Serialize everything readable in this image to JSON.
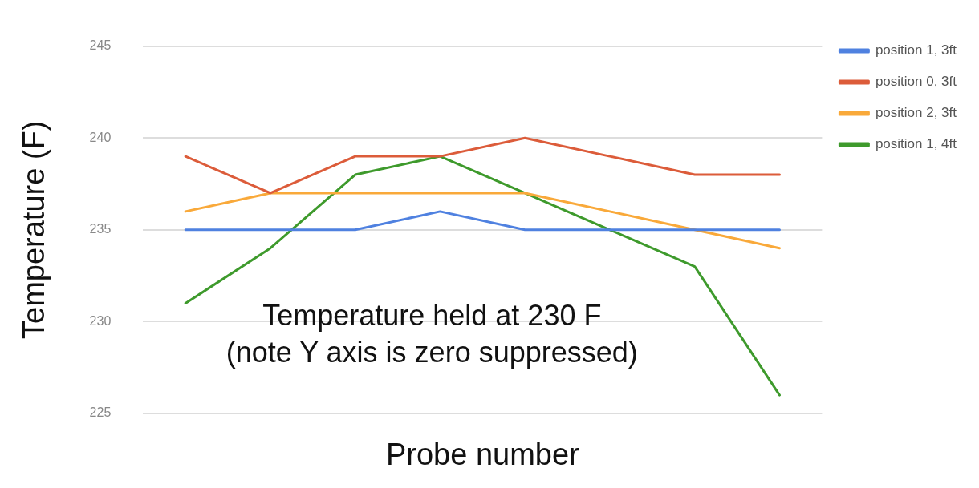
{
  "chart_data": {
    "type": "line",
    "xlabel": "Probe number",
    "ylabel": "Temperature (F)",
    "categories": [
      null,
      null,
      null,
      null,
      null,
      null,
      null,
      null
    ],
    "series": [
      {
        "name": "position 1, 3ft",
        "color": "#4f81e0",
        "values": [
          235,
          235,
          235,
          236,
          235,
          235,
          235,
          235
        ]
      },
      {
        "name": "position 0, 3ft",
        "color": "#dc5c3a",
        "values": [
          239,
          237,
          239,
          239,
          240,
          239,
          238,
          238
        ]
      },
      {
        "name": "position 2, 3ft",
        "color": "#f9a93a",
        "values": [
          236,
          237,
          237,
          237,
          237,
          236,
          235,
          234
        ]
      },
      {
        "name": "position 1, 4ft",
        "color": "#3e9a2c",
        "values": [
          231,
          234,
          238,
          239,
          237,
          235,
          233,
          226
        ]
      }
    ],
    "ylim": [
      225,
      245
    ],
    "yticks": [
      225,
      230,
      235,
      240,
      245
    ],
    "grid": "y",
    "legend": "right",
    "marker": "none",
    "line_style": "solid",
    "annotations": [
      "Temperature held at 230 F\n(note Y axis is zero suppressed)"
    ]
  }
}
